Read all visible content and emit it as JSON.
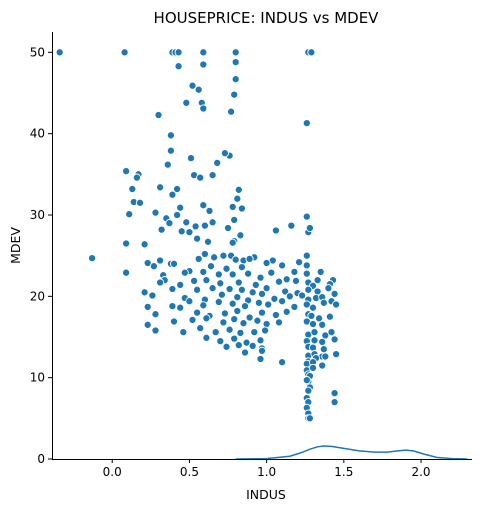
{
  "chart_data": {
    "type": "scatter",
    "title": "HOUSEPRICE: INDUS vs MDEV",
    "xlabel": "INDUS",
    "ylabel": "MDEV",
    "xlim": [
      -0.39,
      2.33
    ],
    "ylim": [
      0,
      52.5
    ],
    "xticks": [
      0.0,
      0.5,
      1.0,
      1.5,
      2.0
    ],
    "xtick_labels": [
      "0.0",
      "0.5",
      "1.0",
      "1.5",
      "2.0"
    ],
    "yticks": [
      0,
      10,
      20,
      30,
      40,
      50
    ],
    "ytick_labels": [
      "0",
      "10",
      "20",
      "30",
      "40",
      "50"
    ],
    "grid": false,
    "legend": "none",
    "colors": {
      "points": "#1f77b4",
      "density": "#1f77b4"
    },
    "density_curve": {
      "x": [
        0.8,
        1.0,
        1.15,
        1.22,
        1.28,
        1.33,
        1.37,
        1.42,
        1.5,
        1.6,
        1.7,
        1.78,
        1.85,
        1.9,
        1.95,
        2.02,
        2.1,
        2.2,
        2.3
      ],
      "y": [
        0.0,
        0.05,
        0.35,
        0.75,
        1.2,
        1.5,
        1.6,
        1.55,
        1.3,
        1.0,
        0.85,
        0.85,
        1.0,
        1.1,
        1.0,
        0.6,
        0.2,
        0.05,
        0.0
      ]
    },
    "points": {
      "x": [
        -0.34,
        0.08,
        0.39,
        0.41,
        0.43,
        0.59,
        0.8,
        1.27,
        1.29,
        1.29,
        0.43,
        0.59,
        0.8,
        0.8,
        0.79,
        0.77,
        0.48,
        0.56,
        0.58,
        0.59,
        0.76,
        0.3,
        0.38,
        0.52,
        0.73,
        0.36,
        0.51,
        0.68,
        1.06,
        0.09,
        0.38,
        0.53,
        0.57,
        0.14,
        0.17,
        0.42,
        0.65,
        0.82,
        0.13,
        0.16,
        0.31,
        0.39,
        0.59,
        0.81,
        1.26,
        0.11,
        0.28,
        0.44,
        0.63,
        0.78,
        0.84,
        0.18,
        0.35,
        0.48,
        0.54,
        0.6,
        0.79,
        0.37,
        0.45,
        0.55,
        0.65,
        0.75,
        0.83,
        1.27,
        0.42,
        0.5,
        0.62,
        0.72,
        0.79,
        1.04,
        0.32,
        0.6,
        0.78,
        1.16,
        1.28,
        0.09,
        0.21,
        0.38,
        0.66,
        0.77,
        0.92,
        1.26,
        -0.13,
        0.23,
        0.31,
        0.4,
        0.56,
        0.8,
        0.85,
        0.89,
        0.27,
        0.33,
        0.5,
        0.64,
        0.74,
        0.84,
        1.0,
        1.1,
        1.21,
        1.26,
        0.34,
        0.47,
        0.59,
        0.69,
        0.78,
        0.88,
        0.96,
        1.03,
        1.13,
        1.18,
        1.26,
        1.33,
        1.35,
        1.43,
        0.31,
        0.44,
        0.53,
        0.61,
        0.7,
        0.82,
        0.93,
        1.08,
        1.19,
        1.27,
        1.3,
        1.41,
        0.09,
        0.21,
        0.39,
        0.55,
        0.65,
        0.76,
        0.84,
        0.91,
        1.0,
        1.12,
        1.2,
        1.27,
        1.33,
        1.4,
        1.44,
        0.26,
        0.47,
        0.6,
        0.71,
        0.81,
        0.88,
        0.97,
        1.05,
        1.15,
        1.23,
        1.27,
        1.32,
        1.36,
        1.42,
        0.23,
        0.39,
        0.5,
        0.59,
        0.69,
        0.78,
        0.86,
        0.95,
        1.01,
        1.1,
        1.18,
        1.26,
        1.3,
        1.37,
        1.45,
        0.28,
        0.44,
        0.55,
        0.63,
        0.73,
        0.81,
        0.89,
        0.97,
        1.06,
        1.13,
        1.27,
        1.29,
        1.34,
        1.41,
        0.23,
        0.4,
        0.52,
        0.61,
        0.72,
        0.79,
        0.85,
        0.94,
        1.0,
        1.08,
        1.26,
        1.3,
        1.36,
        0.28,
        0.46,
        0.57,
        0.67,
        0.76,
        0.83,
        0.92,
        0.99,
        1.27,
        1.31,
        1.38,
        1.42,
        0.61,
        0.7,
        0.79,
        0.87,
        0.96,
        1.26,
        1.31,
        1.36,
        1.44,
        0.74,
        0.82,
        0.91,
        0.97,
        1.27,
        1.3,
        1.37,
        0.86,
        0.97,
        1.27,
        1.31,
        1.36,
        1.45,
        0.96,
        1.27,
        1.32,
        1.38,
        1.26,
        1.3,
        1.36,
        1.1,
        1.26,
        1.3,
        1.27,
        1.28,
        1.27,
        1.26,
        1.28,
        1.27,
        1.26,
        1.27,
        1.26,
        1.27,
        1.44,
        1.44,
        1.27,
        1.28,
        1.26
      ],
      "y": [
        50.0,
        50.0,
        50.0,
        50.0,
        50.0,
        50.0,
        50.0,
        50.0,
        50.0,
        50.0,
        48.3,
        48.5,
        48.8,
        46.7,
        44.8,
        42.7,
        43.8,
        45.4,
        43.8,
        43.1,
        37.3,
        42.3,
        39.8,
        45.9,
        37.6,
        36.2,
        37.0,
        36.4,
        28.1,
        35.4,
        37.9,
        34.9,
        34.6,
        31.6,
        35.0,
        33.2,
        34.9,
        33.1,
        33.2,
        34.6,
        33.4,
        32.5,
        31.2,
        32.0,
        29.8,
        30.1,
        30.3,
        30.9,
        30.5,
        31.0,
        30.8,
        31.5,
        29.6,
        29.1,
        28.6,
        28.7,
        29.4,
        29.0,
        28.0,
        27.1,
        29.1,
        28.4,
        27.5,
        27.9,
        30.0,
        27.9,
        26.7,
        25.0,
        26.8,
        24.4,
        28.2,
        25.2,
        26.6,
        28.7,
        28.4,
        26.5,
        26.4,
        24.0,
        24.8,
        25.0,
        24.8,
        25.0,
        24.7,
        24.1,
        24.4,
        24.0,
        24.6,
        24.5,
        24.4,
        24.6,
        23.7,
        22.6,
        23.1,
        23.7,
        23.4,
        23.6,
        24.1,
        23.8,
        24.2,
        23.8,
        22.0,
        22.9,
        23.0,
        22.7,
        22.7,
        22.8,
        22.3,
        22.9,
        22.1,
        23.0,
        22.8,
        22.0,
        23.0,
        22.0,
        21.7,
        21.4,
        21.9,
        22.0,
        21.6,
        21.7,
        21.4,
        21.8,
        21.9,
        21.7,
        21.3,
        21.5,
        22.9,
        20.5,
        20.9,
        20.8,
        21.0,
        20.9,
        20.8,
        20.5,
        21.0,
        20.6,
        20.4,
        20.8,
        20.6,
        21.0,
        20.3,
        20.1,
        19.8,
        19.6,
        20.2,
        19.9,
        19.5,
        20.3,
        19.7,
        20.0,
        20.1,
        19.6,
        19.8,
        19.9,
        19.4,
        18.7,
        18.8,
        19.4,
        18.9,
        19.3,
        19.1,
        18.8,
        19.2,
        19.0,
        19.4,
        18.7,
        19.0,
        18.6,
        19.2,
        19.0,
        17.8,
        18.6,
        18.0,
        17.6,
        17.9,
        18.2,
        17.4,
        18.0,
        17.7,
        18.1,
        17.8,
        17.6,
        17.3,
        17.5,
        16.5,
        16.9,
        17.1,
        17.3,
        16.8,
        17.2,
        16.7,
        17.0,
        16.6,
        16.8,
        16.9,
        16.6,
        16.5,
        15.8,
        15.6,
        16.1,
        15.6,
        15.9,
        15.5,
        15.6,
        15.8,
        15.3,
        15.6,
        15.2,
        15.6,
        14.9,
        14.5,
        14.8,
        14.3,
        14.6,
        14.5,
        14.6,
        14.4,
        14.7,
        13.8,
        14.0,
        13.9,
        13.6,
        13.8,
        13.7,
        13.5,
        13.1,
        13.3,
        12.7,
        12.9,
        12.6,
        12.9,
        12.3,
        12.0,
        12.4,
        12.6,
        11.7,
        11.9,
        11.5,
        11.9,
        10.9,
        11.2,
        10.4,
        10.2,
        9.5,
        9.7,
        8.8,
        8.4,
        7.5,
        7.0,
        6.3,
        5.6,
        8.1,
        7.0,
        5.0,
        5.0,
        41.3
      ]
    }
  }
}
